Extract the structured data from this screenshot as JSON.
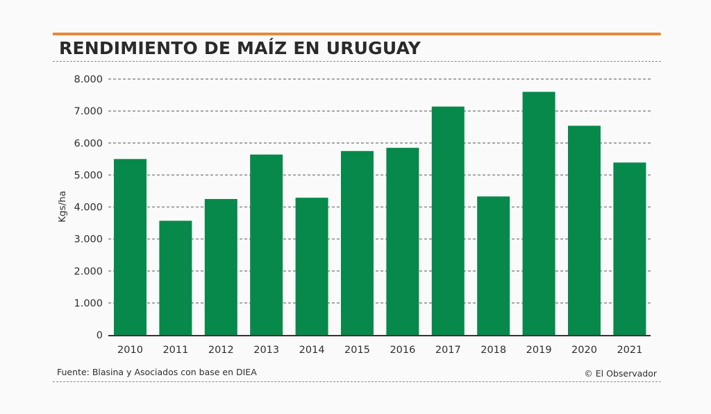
{
  "header": {
    "title": "RENDIMIENTO DE MAÍZ EN URUGUAY"
  },
  "footer": {
    "source": "Fuente: Blasina y Asociados con base en DIEA",
    "credit": "© El Observador"
  },
  "colors": {
    "accent": "#e8893a",
    "bar": "#07894b",
    "grid": "#8a8a8a",
    "text": "#2e2e2e"
  },
  "chart_data": {
    "type": "bar",
    "title": "RENDIMIENTO DE MAÍZ EN URUGUAY",
    "xlabel": "",
    "ylabel": "Kgs/ha",
    "categories": [
      "2010",
      "2011",
      "2012",
      "2013",
      "2014",
      "2015",
      "2016",
      "2017",
      "2018",
      "2019",
      "2020",
      "2021"
    ],
    "values": [
      5500,
      3570,
      4250,
      5640,
      4290,
      5750,
      5850,
      7140,
      4330,
      7600,
      6540,
      5390
    ],
    "ylim": [
      0,
      8000
    ],
    "yticks": [
      0,
      1000,
      2000,
      3000,
      4000,
      5000,
      6000,
      7000,
      8000
    ],
    "ytick_labels": [
      "0",
      "1.000",
      "2.000",
      "3.000",
      "4.000",
      "5.000",
      "6.000",
      "7.000",
      "8.000"
    ],
    "grid": true,
    "legend": "none",
    "source": "Fuente: Blasina y Asociados con base en DIEA"
  }
}
